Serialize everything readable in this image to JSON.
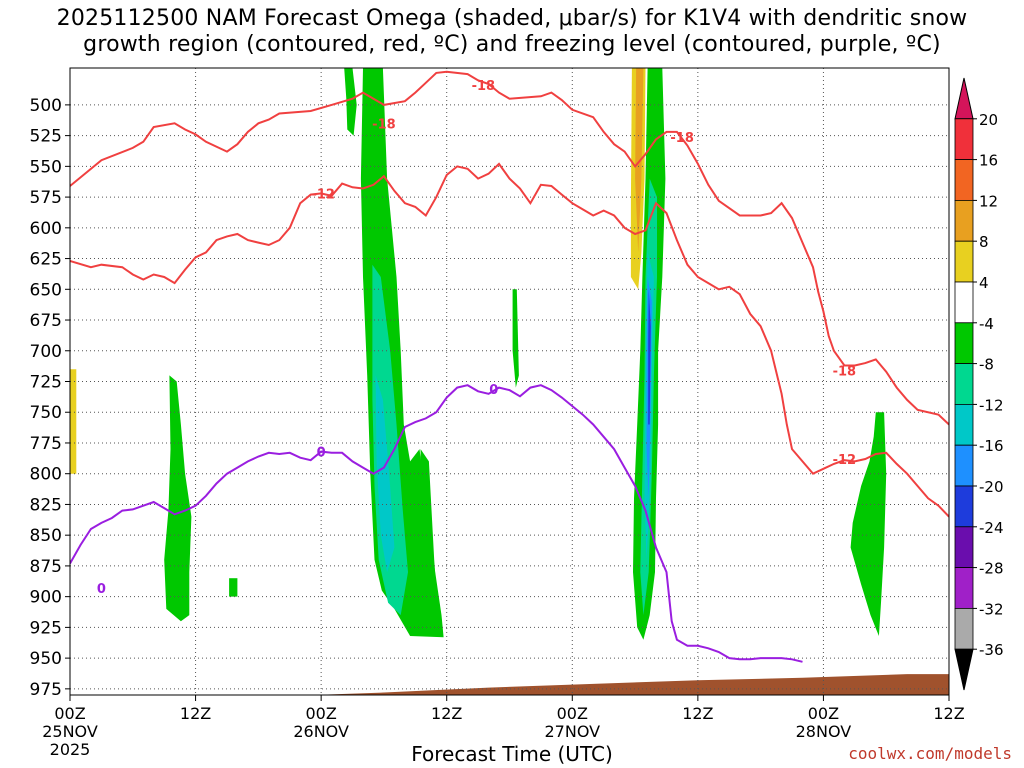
{
  "title_line1": "2025112500 NAM Forecast Omega (shaded, μbar/s) for K1V4 with dendritic snow",
  "title_line2": "growth region (contoured, red, ºC) and freezing level (contoured, purple, ºC)",
  "credit": "coolwx.com/models",
  "chart_data": {
    "type": "heatmap",
    "title": "2025112500 NAM Forecast Omega (shaded, μbar/s) for K1V4 with dendritic snow growth region (contoured, red, ºC) and freezing level (contoured, purple, ºC)",
    "xlabel": "Forecast Time (UTC)",
    "ylabel": "",
    "x_range_hours": [
      0,
      84
    ],
    "ylim": [
      980,
      470
    ],
    "y_ticks": [
      500,
      525,
      550,
      575,
      600,
      625,
      650,
      675,
      700,
      725,
      750,
      775,
      800,
      825,
      850,
      875,
      900,
      925,
      950,
      975
    ],
    "x_ticks": [
      {
        "hour": 0,
        "label": "00Z",
        "sub": "25NOV",
        "sub2": "2025"
      },
      {
        "hour": 12,
        "label": "12Z",
        "sub": "",
        "sub2": ""
      },
      {
        "hour": 24,
        "label": "00Z",
        "sub": "26NOV",
        "sub2": ""
      },
      {
        "hour": 36,
        "label": "12Z",
        "sub": "",
        "sub2": ""
      },
      {
        "hour": 48,
        "label": "00Z",
        "sub": "27NOV",
        "sub2": ""
      },
      {
        "hour": 60,
        "label": "12Z",
        "sub": "",
        "sub2": ""
      },
      {
        "hour": 72,
        "label": "00Z",
        "sub": "28NOV",
        "sub2": ""
      },
      {
        "hour": 84,
        "label": "12Z",
        "sub": "",
        "sub2": ""
      }
    ],
    "colorbar": {
      "labels": [
        "20",
        "16",
        "12",
        "8",
        "4",
        "-4",
        "-8",
        "-12",
        "-16",
        "-20",
        "-24",
        "-28",
        "-32",
        "-36"
      ],
      "colors": [
        "#d4145a",
        "#f0303a",
        "#f26522",
        "#e8a020",
        "#e8d020",
        "#ffffff",
        "#00c800",
        "#00d890",
        "#00c8c8",
        "#1e90ff",
        "#1e3cdc",
        "#6a0dad",
        "#a020c8",
        "#aaaaaa",
        "#000000"
      ]
    },
    "contours": [
      {
        "name": "-18",
        "color": "#f04040",
        "points": [
          [
            0,
            566
          ],
          [
            3,
            545
          ],
          [
            6,
            535
          ],
          [
            7,
            530
          ],
          [
            8,
            518
          ],
          [
            10,
            515
          ],
          [
            11,
            520
          ],
          [
            12,
            524
          ],
          [
            13,
            530
          ],
          [
            15,
            538
          ],
          [
            16,
            532
          ],
          [
            17,
            522
          ],
          [
            18,
            515
          ],
          [
            19,
            512
          ],
          [
            20,
            507
          ],
          [
            23,
            505
          ],
          [
            25,
            500
          ],
          [
            27,
            495
          ],
          [
            28,
            490
          ],
          [
            29,
            495
          ],
          [
            30,
            500
          ],
          [
            32,
            497
          ],
          [
            33,
            490
          ],
          [
            34,
            482
          ],
          [
            35,
            474
          ],
          [
            36,
            473
          ],
          [
            38,
            475
          ],
          [
            39,
            480
          ],
          [
            40,
            483
          ],
          [
            41,
            490
          ],
          [
            42,
            495
          ],
          [
            45,
            493
          ],
          [
            46,
            490
          ],
          [
            47,
            496
          ],
          [
            48,
            504
          ],
          [
            50,
            510
          ],
          [
            51,
            522
          ],
          [
            52,
            532
          ],
          [
            53,
            538
          ],
          [
            54,
            550
          ],
          [
            55,
            540
          ],
          [
            56,
            528
          ],
          [
            57,
            522
          ],
          [
            58,
            522
          ],
          [
            59,
            533
          ],
          [
            60,
            548
          ],
          [
            61,
            565
          ],
          [
            62,
            578
          ],
          [
            64,
            590
          ],
          [
            66,
            590
          ],
          [
            67,
            588
          ],
          [
            68,
            580
          ],
          [
            69,
            592
          ],
          [
            70,
            612
          ],
          [
            71,
            632
          ],
          [
            71.5,
            652
          ],
          [
            72,
            668
          ],
          [
            72.5,
            688
          ],
          [
            73,
            700
          ],
          [
            74,
            712
          ],
          [
            75,
            712
          ],
          [
            76,
            710
          ],
          [
            77,
            707
          ],
          [
            78,
            717
          ],
          [
            79,
            730
          ],
          [
            80,
            740
          ],
          [
            81,
            748
          ],
          [
            83,
            752
          ],
          [
            84,
            760
          ]
        ]
      },
      {
        "name": "-12",
        "color": "#f04040",
        "points": [
          [
            0,
            627
          ],
          [
            2,
            632
          ],
          [
            3,
            630
          ],
          [
            5,
            632
          ],
          [
            6,
            638
          ],
          [
            7,
            642
          ],
          [
            8,
            638
          ],
          [
            9,
            640
          ],
          [
            10,
            645
          ],
          [
            11,
            634
          ],
          [
            12,
            624
          ],
          [
            13,
            620
          ],
          [
            14,
            610
          ],
          [
            15,
            607
          ],
          [
            16,
            605
          ],
          [
            17,
            610
          ],
          [
            18,
            612
          ],
          [
            19,
            614
          ],
          [
            20,
            610
          ],
          [
            21,
            600
          ],
          [
            22,
            580
          ],
          [
            23,
            573
          ],
          [
            24,
            572
          ],
          [
            25,
            574
          ],
          [
            26,
            564
          ],
          [
            27,
            567
          ],
          [
            28,
            568
          ],
          [
            29,
            565
          ],
          [
            30,
            558
          ],
          [
            31,
            570
          ],
          [
            32,
            580
          ],
          [
            33,
            583
          ],
          [
            34,
            590
          ],
          [
            35,
            575
          ],
          [
            36,
            557
          ],
          [
            37,
            550
          ],
          [
            38,
            552
          ],
          [
            39,
            560
          ],
          [
            40,
            556
          ],
          [
            41,
            548
          ],
          [
            42,
            560
          ],
          [
            43,
            568
          ],
          [
            44,
            580
          ],
          [
            45,
            565
          ],
          [
            46,
            566
          ],
          [
            47,
            573
          ],
          [
            48,
            580
          ],
          [
            49,
            585
          ],
          [
            50,
            590
          ],
          [
            51,
            586
          ],
          [
            52,
            590
          ],
          [
            53,
            600
          ],
          [
            54,
            605
          ],
          [
            55,
            602
          ],
          [
            56,
            580
          ],
          [
            57,
            588
          ],
          [
            58,
            610
          ],
          [
            59,
            630
          ],
          [
            60,
            640
          ],
          [
            61,
            645
          ],
          [
            62,
            650
          ],
          [
            63,
            648
          ],
          [
            64,
            654
          ],
          [
            65,
            670
          ],
          [
            66,
            680
          ],
          [
            67,
            700
          ],
          [
            68,
            735
          ],
          [
            68.5,
            760
          ],
          [
            69,
            780
          ],
          [
            70,
            790
          ],
          [
            71,
            800
          ],
          [
            72,
            796
          ],
          [
            73,
            792
          ],
          [
            74,
            789
          ],
          [
            75,
            790
          ],
          [
            76,
            788
          ],
          [
            77,
            784
          ],
          [
            78,
            783
          ],
          [
            79,
            792
          ],
          [
            80,
            800
          ],
          [
            81,
            810
          ],
          [
            82,
            820
          ],
          [
            83,
            826
          ],
          [
            84,
            835
          ]
        ]
      },
      {
        "name": "0",
        "color": "#9a1ee0",
        "points": [
          [
            0,
            873
          ],
          [
            1,
            858
          ],
          [
            2,
            845
          ],
          [
            3,
            840
          ],
          [
            4,
            836
          ],
          [
            5,
            830
          ],
          [
            6,
            829
          ],
          [
            7,
            826
          ],
          [
            8,
            823
          ],
          [
            9,
            828
          ],
          [
            10,
            833
          ],
          [
            11,
            830
          ],
          [
            12,
            826
          ],
          [
            13,
            818
          ],
          [
            14,
            808
          ],
          [
            15,
            800
          ],
          [
            16,
            795
          ],
          [
            17,
            790
          ],
          [
            18,
            786
          ],
          [
            19,
            783
          ],
          [
            20,
            784
          ],
          [
            21,
            783
          ],
          [
            22,
            787
          ],
          [
            23,
            789
          ],
          [
            24,
            782
          ],
          [
            25,
            783
          ],
          [
            26,
            783
          ],
          [
            27,
            790
          ],
          [
            28,
            795
          ],
          [
            29,
            800
          ],
          [
            30,
            795
          ],
          [
            31,
            780
          ],
          [
            32,
            762
          ],
          [
            33,
            758
          ],
          [
            34,
            755
          ],
          [
            35,
            750
          ],
          [
            36,
            738
          ],
          [
            37,
            730
          ],
          [
            38,
            728
          ],
          [
            39,
            733
          ],
          [
            40,
            735
          ],
          [
            41,
            730
          ],
          [
            42,
            732
          ],
          [
            43,
            737
          ],
          [
            44,
            730
          ],
          [
            45,
            728
          ],
          [
            46,
            732
          ],
          [
            47,
            738
          ],
          [
            48,
            745
          ],
          [
            49,
            752
          ],
          [
            50,
            760
          ],
          [
            51,
            770
          ],
          [
            52,
            780
          ],
          [
            53,
            795
          ],
          [
            54,
            810
          ],
          [
            55,
            830
          ],
          [
            56,
            860
          ],
          [
            57,
            880
          ],
          [
            57.5,
            920
          ],
          [
            58,
            935
          ],
          [
            59,
            940
          ],
          [
            60,
            940
          ],
          [
            61,
            942
          ],
          [
            62,
            945
          ],
          [
            63,
            950
          ],
          [
            64,
            951
          ],
          [
            65,
            951
          ],
          [
            66,
            950
          ],
          [
            67,
            950
          ],
          [
            68,
            950
          ],
          [
            69,
            951
          ],
          [
            70,
            953
          ]
        ]
      }
    ]
  }
}
